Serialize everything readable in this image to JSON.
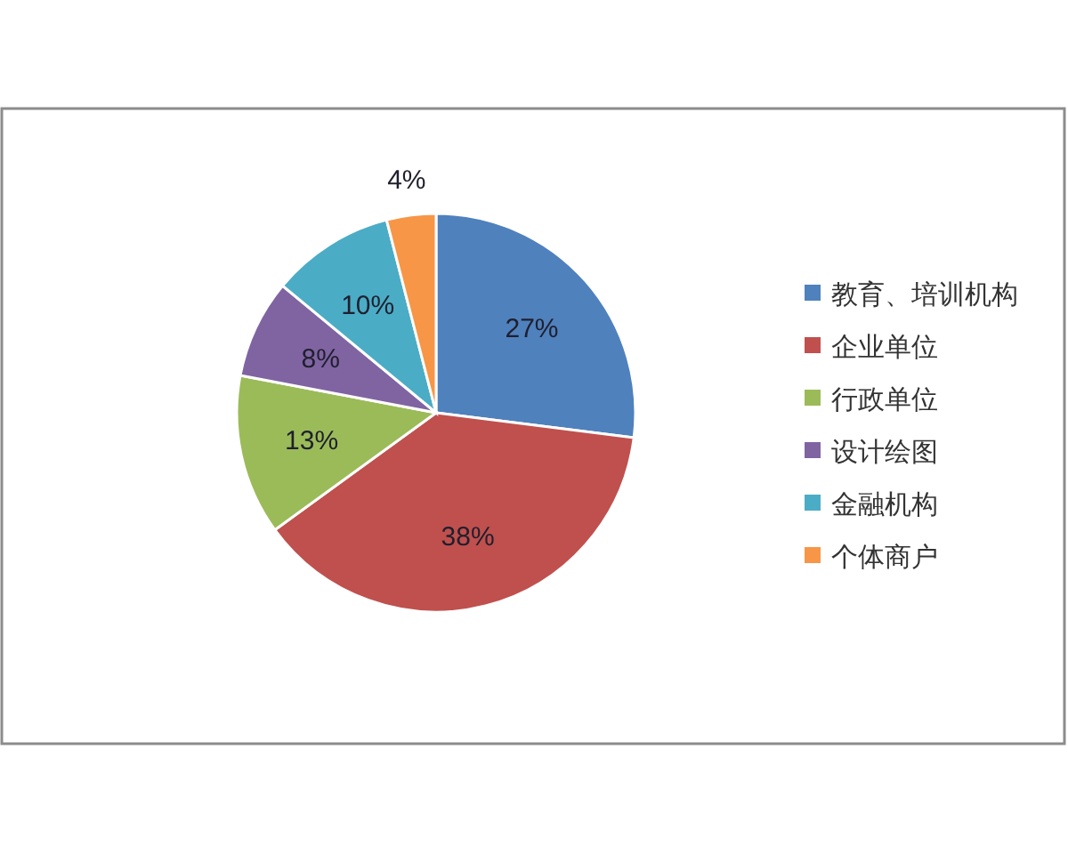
{
  "chart_data": {
    "type": "pie",
    "categories": [
      "教育、培训机构",
      "企业单位",
      "行政单位",
      "设计绘图",
      "金融机构",
      "个体商户"
    ],
    "values": [
      27,
      38,
      13,
      8,
      10,
      4
    ],
    "value_labels": [
      "27%",
      "38%",
      "13%",
      "8%",
      "10%",
      "4%"
    ],
    "colors": [
      "#4f81bd",
      "#c0504d",
      "#9bbb59",
      "#8064a2",
      "#4bacc6",
      "#f79646"
    ],
    "legend": "right"
  }
}
